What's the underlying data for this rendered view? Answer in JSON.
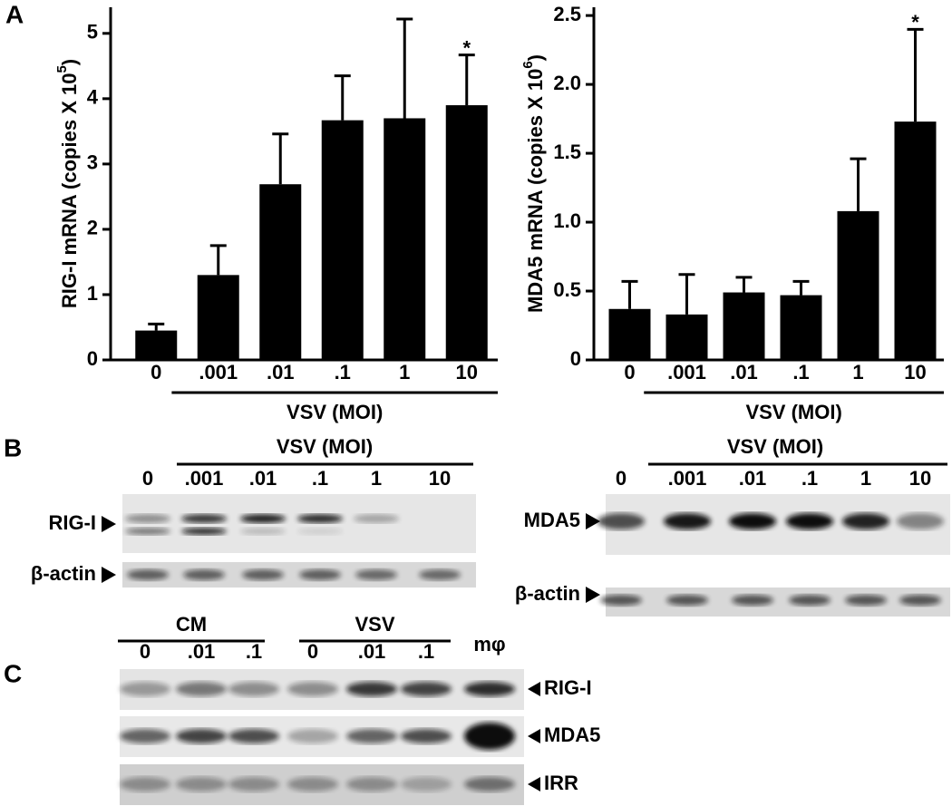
{
  "chart_data": [
    {
      "type": "bar",
      "ylabel": "RIG-I mRNA (copies X 10",
      "ylabel_sup": "5",
      "ylabel_end": ")",
      "categories": [
        "0",
        ".001",
        ".01",
        ".1",
        "1",
        "10"
      ],
      "values": [
        0.45,
        1.3,
        2.69,
        3.67,
        3.7,
        3.9
      ],
      "errors": [
        0.1,
        0.45,
        0.77,
        0.68,
        1.52,
        0.77
      ],
      "color": "#000000",
      "ylim": [
        0,
        5.4
      ],
      "yticks": [
        0,
        1,
        2,
        3,
        4,
        5
      ],
      "group_label": "VSV (MOI)",
      "annotation": "*"
    },
    {
      "type": "bar",
      "ylabel": "MDA5 mRNA (copies X 10",
      "ylabel_sup": "6",
      "ylabel_end": ")",
      "categories": [
        "0",
        ".001",
        ".01",
        ".1",
        "1",
        "10"
      ],
      "values": [
        0.37,
        0.33,
        0.49,
        0.47,
        1.08,
        1.73
      ],
      "errors": [
        0.2,
        0.29,
        0.11,
        0.1,
        0.38,
        0.67
      ],
      "color": "#000000",
      "ylim": [
        0,
        2.56
      ],
      "yticks": [
        0,
        0.5,
        {
          "value": 1,
          "label": "1.0"
        },
        1.5,
        {
          "value": 2,
          "label": "2.0"
        },
        2.5
      ],
      "group_label": "VSV (MOI)",
      "annotation": "*"
    }
  ],
  "panel_labels": [
    "A",
    "B",
    "C"
  ],
  "panel_b": {
    "left": {
      "header": "VSV (MOI)",
      "lanes": [
        "0",
        ".001",
        ".01",
        ".1",
        "1",
        "10"
      ],
      "rows": [
        "RIG-I",
        "β-actin"
      ]
    },
    "right": {
      "header": "VSV (MOI)",
      "lanes": [
        "0",
        ".001",
        ".01",
        ".1",
        "1",
        "10"
      ],
      "rows": [
        "MDA5",
        "β-actin"
      ]
    }
  },
  "panel_c": {
    "groups": [
      {
        "label": "CM",
        "lanes": [
          "0",
          ".01",
          ".1"
        ]
      },
      {
        "label": "VSV",
        "lanes": [
          "0",
          ".01",
          ".1"
        ]
      }
    ],
    "extra_lane": "mφ",
    "rows": [
      "RIG-I",
      "MDA5",
      "IRR"
    ]
  }
}
